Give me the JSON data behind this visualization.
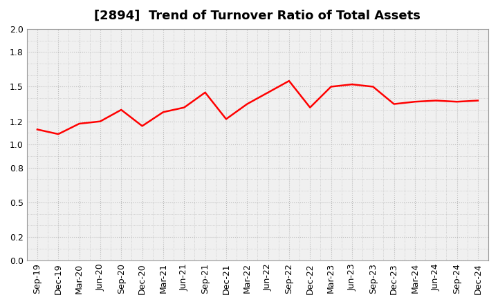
{
  "title": "[2894]  Trend of Turnover Ratio of Total Assets",
  "x_labels": [
    "Sep-19",
    "Dec-19",
    "Mar-20",
    "Jun-20",
    "Sep-20",
    "Dec-20",
    "Mar-21",
    "Jun-21",
    "Sep-21",
    "Dec-21",
    "Mar-22",
    "Jun-22",
    "Sep-22",
    "Dec-22",
    "Mar-23",
    "Jun-23",
    "Sep-23",
    "Dec-23",
    "Mar-24",
    "Jun-24",
    "Sep-24",
    "Dec-24"
  ],
  "y_values": [
    1.13,
    1.09,
    1.18,
    1.2,
    1.3,
    1.16,
    1.28,
    1.32,
    1.45,
    1.22,
    1.35,
    1.45,
    1.55,
    1.32,
    1.5,
    1.52,
    1.5,
    1.35,
    1.37,
    1.38,
    1.37,
    1.38
  ],
  "line_color": "#ff0000",
  "line_width": 1.8,
  "ylim": [
    0.0,
    2.0
  ],
  "yticks": [
    0.0,
    0.2,
    0.5,
    0.8,
    1.0,
    1.2,
    1.5,
    1.8,
    2.0
  ],
  "grid_color": "#bbbbbb",
  "background_color": "#ffffff",
  "plot_bg_color": "#f0f0f0",
  "title_fontsize": 13,
  "tick_fontsize": 9
}
